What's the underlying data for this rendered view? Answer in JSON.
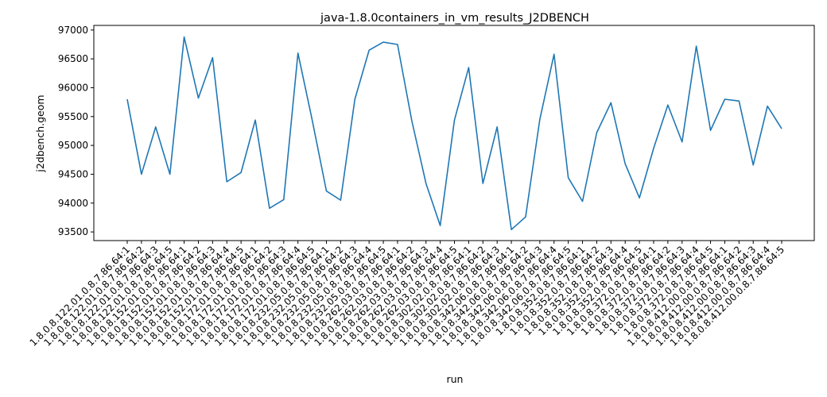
{
  "chart_data": {
    "type": "line",
    "title": "java-1.8.0containers_in_vm_results_J2DBENCH",
    "xlabel": "run",
    "ylabel": "j2dbench.geom",
    "ylim": [
      93350,
      97080
    ],
    "yticks": [
      93500,
      94000,
      94500,
      95000,
      95500,
      96000,
      96500,
      97000
    ],
    "grid": false,
    "line_color": "#1f77b4",
    "categories": [
      "1.8.0.8.122.01.0.8.7.86.64:1",
      "1.8.0.8.122.01.0.8.7.86.64:2",
      "1.8.0.8.122.01.0.8.7.86.64:3",
      "1.8.0.8.122.01.0.8.7.86.64:5",
      "1.8.0.8.152.01.0.8.7.86.64:1",
      "1.8.0.8.152.01.0.8.7.86.64:2",
      "1.8.0.8.152.01.0.8.7.86.64:3",
      "1.8.0.8.152.01.0.8.7.86.64:4",
      "1.8.0.8.152.01.0.8.7.86.64:5",
      "1.8.0.8.172.01.0.8.7.86.64:1",
      "1.8.0.8.172.01.0.8.7.86.64:2",
      "1.8.0.8.172.01.0.8.7.86.64:3",
      "1.8.0.8.172.01.0.8.7.86.64:4",
      "1.8.0.8.172.01.0.8.7.86.64:5",
      "1.8.0.8.232.05.0.8.7.86.64:1",
      "1.8.0.8.232.05.0.8.7.86.64:2",
      "1.8.0.8.232.05.0.8.7.86.64:3",
      "1.8.0.8.232.05.0.8.7.86.64:4",
      "1.8.0.8.232.05.0.8.7.86.64:5",
      "1.8.0.8.262.03.0.8.7.86.64:1",
      "1.8.0.8.262.03.0.8.7.86.64:2",
      "1.8.0.8.262.03.0.8.7.86.64:3",
      "1.8.0.8.262.03.0.8.7.86.64:4",
      "1.8.0.8.262.03.0.8.7.86.64:5",
      "1.8.0.8.302.02.0.8.7.86.64:1",
      "1.8.0.8.302.02.0.8.7.86.64:2",
      "1.8.0.8.302.02.0.8.7.86.64:3",
      "1.8.0.8.342.06.0.8.7.86.64:1",
      "1.8.0.8.342.06.0.8.7.86.64:2",
      "1.8.0.8.342.06.0.8.7.86.64:3",
      "1.8.0.8.342.06.0.8.7.86.64:4",
      "1.8.0.8.342.06.0.8.7.86.64:5",
      "1.8.0.8.352.0.8.7.86.64:1",
      "1.8.0.8.352.0.8.7.86.64:2",
      "1.8.0.8.352.0.8.7.86.64:3",
      "1.8.0.8.352.0.8.7.86.64:4",
      "1.8.0.8.352.0.8.7.86.64:5",
      "1.8.0.8.372.0.8.7.86.64:1",
      "1.8.0.8.372.0.8.7.86.64:2",
      "1.8.0.8.372.0.8.7.86.64:3",
      "1.8.0.8.372.0.8.7.86.64:4",
      "1.8.0.8.372.0.8.7.86.64:5",
      "1.8.0.8.412.00.0.8.7.86.64:1",
      "1.8.0.8.412.00.0.8.7.86.64:2",
      "1.8.0.8.412.00.0.8.7.86.64:3",
      "1.8.0.8.412.00.0.8.7.86.64:4",
      "1.8.0.8.412.00.0.8.7.86.64:5"
    ],
    "values": [
      95800,
      94500,
      95320,
      94500,
      96880,
      95820,
      96520,
      94370,
      94530,
      95440,
      93910,
      94060,
      96600,
      95440,
      94210,
      94050,
      95800,
      96650,
      96790,
      96750,
      95430,
      94340,
      93610,
      95440,
      96350,
      94340,
      95320,
      93540,
      93760,
      95450,
      96580,
      94440,
      94030,
      95220,
      95740,
      94680,
      94090,
      94950,
      95700,
      95060,
      96720,
      95260,
      95800,
      95770,
      94660,
      95680,
      95290
    ]
  }
}
